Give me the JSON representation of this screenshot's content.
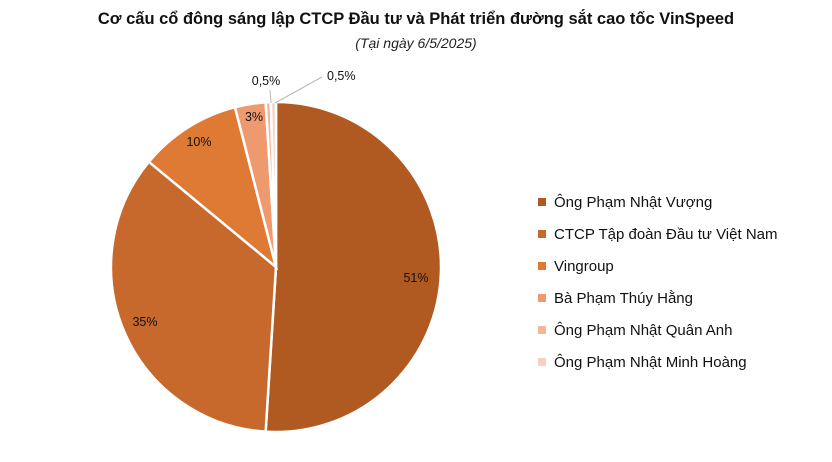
{
  "chart_data": {
    "type": "pie",
    "title": "Cơ cấu cổ đông sáng lập CTCP Đầu tư và Phát triển đường sắt cao tốc VinSpeed",
    "subtitle": "(Tại ngày 6/5/2025)",
    "legend_position": "right",
    "slices": [
      {
        "label": "Ông Phạm Nhật Vượng",
        "value": 51,
        "value_label": "51%",
        "color": "#B05A22"
      },
      {
        "label": "CTCP Tập đoàn Đầu tư Việt Nam",
        "value": 35,
        "value_label": "35%",
        "color": "#C7682C"
      },
      {
        "label": "Vingroup",
        "value": 10,
        "value_label": "10%",
        "color": "#DF7A35"
      },
      {
        "label": "Bà Phạm Thúy Hằng",
        "value": 3,
        "value_label": "3%",
        "color": "#EE9A6E"
      },
      {
        "label": "Ông Phạm Nhật Quân Anh",
        "value": 0.5,
        "value_label": "0,5%",
        "color": "#F2B79A"
      },
      {
        "label": "Ông Phạm Nhật Minh Hoàng",
        "value": 0.5,
        "value_label": "0,5%",
        "color": "#F6D3C1"
      }
    ]
  }
}
